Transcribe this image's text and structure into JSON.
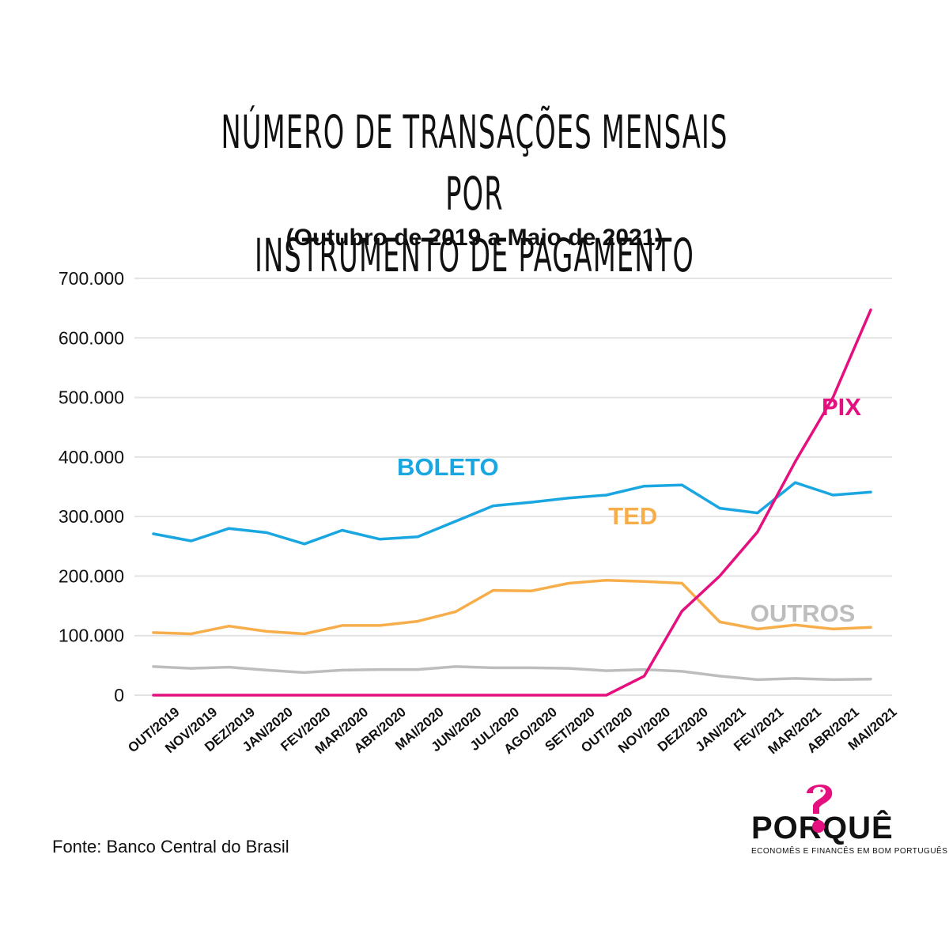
{
  "title_line1": "NÚMERO DE TRANSAÇÕES MENSAIS POR",
  "title_line2": "INSTRUMENTO DE PAGAMENTO",
  "subtitle": "(Outubro de 2019 a Maio de 2021)",
  "source": "Fonte: Banco Central do Brasil",
  "logo": {
    "text_left": "POR",
    "text_right": "QUÊ",
    "tagline": "ECONOMÊS E FINANCÊS EM BOM PORTUGUÊS",
    "accent": "#e5107f"
  },
  "chart_data": {
    "type": "line",
    "title": "NÚMERO DE TRANSAÇÕES MENSAIS POR INSTRUMENTO DE PAGAMENTO",
    "subtitle": "(Outubro de 2019 a Maio de 2021)",
    "xlabel": "",
    "ylabel": "",
    "ylim": [
      0,
      700000
    ],
    "grid": true,
    "y_ticks": [
      0,
      100000,
      200000,
      300000,
      400000,
      500000,
      600000,
      700000
    ],
    "y_tick_labels": [
      "0",
      "100.000",
      "200.000",
      "300.000",
      "400.000",
      "500.000",
      "600.000",
      "700.000"
    ],
    "categories": [
      "OUT/2019",
      "NOV/2019",
      "DEZ/2019",
      "JAN/2020",
      "FEV/2020",
      "MAR/2020",
      "ABR/2020",
      "MAI/2020",
      "JUN/2020",
      "JUL/2020",
      "AGO/2020",
      "SET/2020",
      "OUT/2020",
      "NOV/2020",
      "DEZ/2020",
      "JAN/2021",
      "FEV/2021",
      "MAR/2021",
      "ABR/2021",
      "MAI/2021"
    ],
    "series": [
      {
        "name": "BOLETO",
        "color": "#1aa6e0",
        "label_position": "above-middle",
        "values": [
          271000,
          259000,
          280000,
          273000,
          254000,
          277000,
          262000,
          266000,
          292000,
          318000,
          324000,
          331000,
          336000,
          351000,
          353000,
          314000,
          306000,
          357000,
          336000,
          341000
        ]
      },
      {
        "name": "TED",
        "color": "#f7ae4a",
        "label_position": "above-right",
        "values": [
          105000,
          103000,
          116000,
          107000,
          103000,
          117000,
          117000,
          124000,
          140000,
          176000,
          175000,
          188000,
          193000,
          191000,
          188000,
          123000,
          111000,
          118000,
          111000,
          114000
        ]
      },
      {
        "name": "OUTROS",
        "color": "#bdbdbd",
        "label_position": "above-right",
        "values": [
          48000,
          45000,
          47000,
          42000,
          38000,
          42000,
          43000,
          43000,
          48000,
          46000,
          46000,
          45000,
          41000,
          43000,
          40000,
          32000,
          26000,
          28000,
          26000,
          27000
        ]
      },
      {
        "name": "PIX",
        "color": "#e5107f",
        "label_position": "top-right",
        "values": [
          0,
          0,
          0,
          0,
          0,
          0,
          0,
          0,
          0,
          0,
          0,
          0,
          0,
          32000,
          141000,
          200000,
          274000,
          392000,
          500000,
          647000
        ]
      }
    ]
  }
}
